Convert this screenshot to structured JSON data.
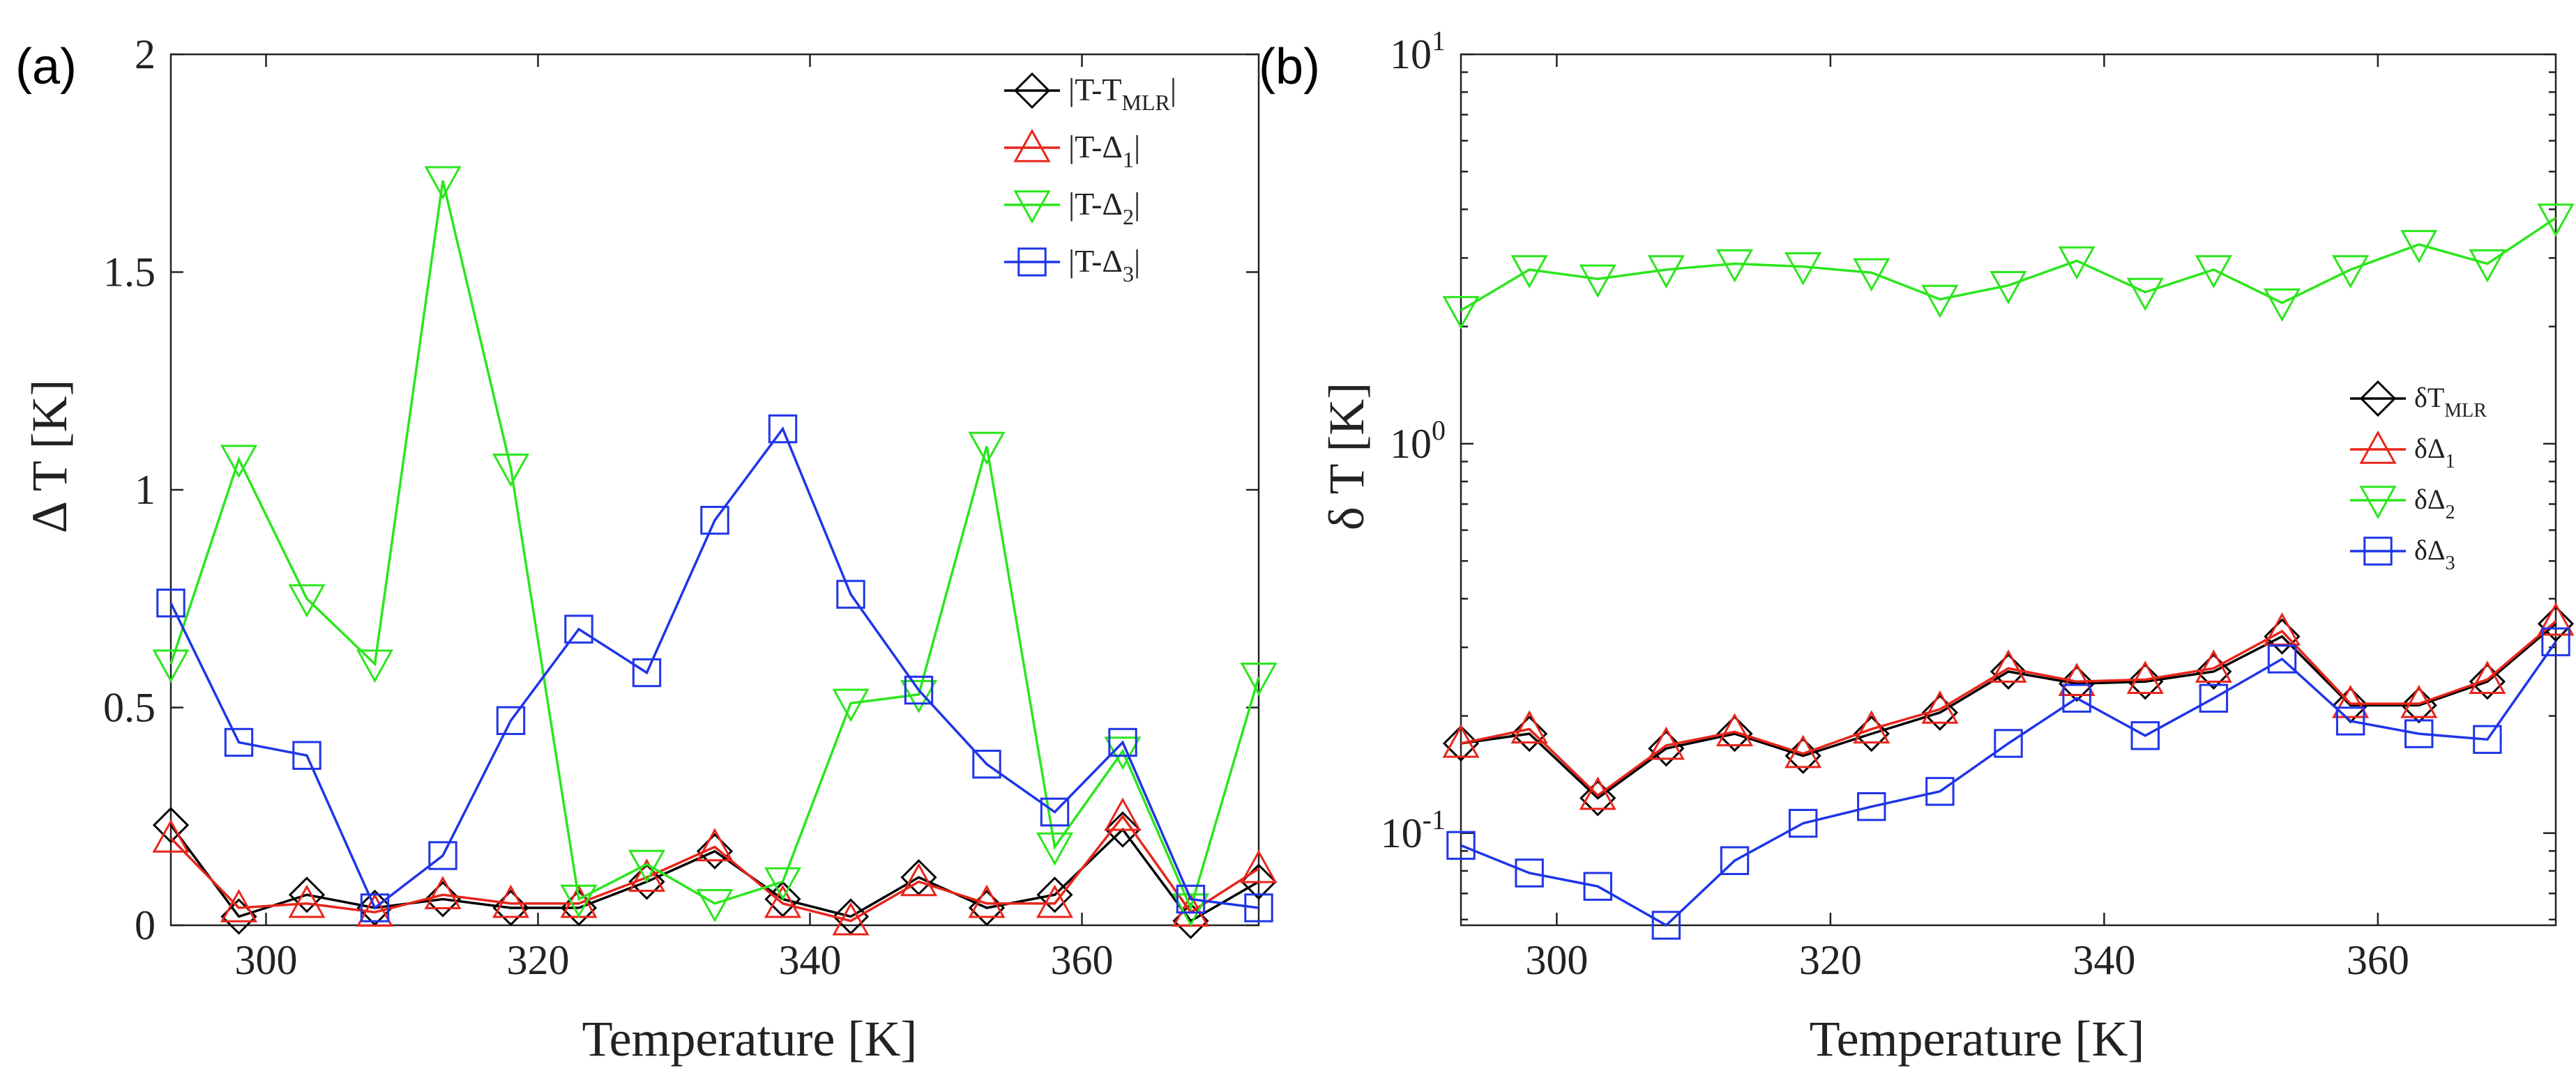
{
  "chart_data": [
    {
      "panel": "(a)",
      "type": "line",
      "xlabel": "Temperature [K]",
      "ylabel": "Δ T [K]",
      "yscale": "linear",
      "xlim": [
        293,
        373
      ],
      "ylim": [
        0,
        2
      ],
      "xticks": [
        300,
        320,
        340,
        360
      ],
      "xtick_labels": [
        "300",
        "320",
        "340",
        "360"
      ],
      "yticks": [
        0,
        0.5,
        1,
        1.5,
        2
      ],
      "ytick_labels": [
        "0",
        "0.5",
        "1",
        "1.5",
        "2"
      ],
      "legend_position": "top-right",
      "x": [
        293,
        298,
        303,
        308,
        313,
        318,
        323,
        328,
        333,
        338,
        343,
        348,
        353,
        358,
        363,
        368,
        373
      ],
      "series": [
        {
          "name": "|T-T_MLR|",
          "label_main": "|T-T",
          "label_sub": "MLR",
          "label_end": "|",
          "color": "#000000",
          "marker": "diamond",
          "values": [
            0.23,
            0.02,
            0.07,
            0.04,
            0.06,
            0.04,
            0.04,
            0.1,
            0.17,
            0.06,
            0.02,
            0.11,
            0.04,
            0.07,
            0.22,
            0.01,
            0.1
          ]
        },
        {
          "name": "|T-Δ_1|",
          "label_main": "|T-Δ",
          "label_sub": "1",
          "label_end": "|",
          "color": "#e8251b",
          "marker": "triangle-up",
          "values": [
            0.2,
            0.04,
            0.05,
            0.03,
            0.07,
            0.05,
            0.05,
            0.11,
            0.18,
            0.05,
            0.01,
            0.1,
            0.05,
            0.05,
            0.25,
            0.03,
            0.13
          ]
        },
        {
          "name": "|T-Δ_2|",
          "label_main": "|T-Δ",
          "label_sub": "2",
          "label_end": "|",
          "color": "#2be61c",
          "marker": "triangle-down",
          "values": [
            0.6,
            1.07,
            0.75,
            0.6,
            1.71,
            1.05,
            0.06,
            0.14,
            0.05,
            0.1,
            0.51,
            0.53,
            1.1,
            0.18,
            0.4,
            0.04,
            0.57
          ]
        },
        {
          "name": "|T-Δ_3|",
          "label_main": "|T-Δ",
          "label_sub": "3",
          "label_end": "|",
          "color": "#1f35e8",
          "marker": "square",
          "values": [
            0.74,
            0.42,
            0.39,
            0.04,
            0.16,
            0.47,
            0.68,
            0.58,
            0.93,
            1.14,
            0.76,
            0.54,
            0.37,
            0.26,
            0.42,
            0.06,
            0.04
          ]
        }
      ]
    },
    {
      "panel": "(b)",
      "type": "line",
      "xlabel": "Temperature [K]",
      "ylabel": "δ T [K]",
      "yscale": "log",
      "xlim": [
        293,
        373
      ],
      "ylim": [
        0.058,
        10
      ],
      "xticks": [
        300,
        320,
        340,
        360
      ],
      "xtick_labels": [
        "300",
        "320",
        "340",
        "360"
      ],
      "yticks": [
        0.1,
        1,
        10
      ],
      "ytick_base": "10",
      "ytick_exps": [
        "-1",
        "0",
        "1"
      ],
      "legend_position": "right",
      "x": [
        293,
        298,
        303,
        308,
        313,
        318,
        323,
        328,
        333,
        338,
        343,
        348,
        353,
        358,
        363,
        368,
        373
      ],
      "series": [
        {
          "name": "δT_MLR",
          "label_main": "δT",
          "label_sub": "MLR",
          "label_end": "",
          "color": "#000000",
          "marker": "diamond",
          "values": [
            0.17,
            0.18,
            0.123,
            0.165,
            0.18,
            0.158,
            0.18,
            0.204,
            0.26,
            0.242,
            0.245,
            0.26,
            0.32,
            0.213,
            0.213,
            0.245,
            0.345
          ]
        },
        {
          "name": "δΔ_1",
          "label_main": "δΔ",
          "label_sub": "1",
          "label_end": "",
          "color": "#e8251b",
          "marker": "triangle-up",
          "values": [
            0.17,
            0.185,
            0.125,
            0.168,
            0.182,
            0.16,
            0.185,
            0.208,
            0.265,
            0.245,
            0.248,
            0.265,
            0.33,
            0.215,
            0.215,
            0.248,
            0.35
          ]
        },
        {
          "name": "δΔ_2",
          "label_main": "δΔ",
          "label_sub": "2",
          "label_end": "",
          "color": "#2be61c",
          "marker": "triangle-down",
          "values": [
            2.2,
            2.8,
            2.65,
            2.8,
            2.9,
            2.85,
            2.75,
            2.35,
            2.55,
            2.95,
            2.45,
            2.8,
            2.3,
            2.8,
            3.25,
            2.9,
            3.8
          ]
        },
        {
          "name": "δΔ_3",
          "label_main": "δΔ",
          "label_sub": "3",
          "label_end": "",
          "color": "#1f35e8",
          "marker": "square",
          "values": [
            0.093,
            0.079,
            0.073,
            0.058,
            0.085,
            0.106,
            0.117,
            0.128,
            0.17,
            0.222,
            0.178,
            0.222,
            0.28,
            0.194,
            0.18,
            0.174,
            0.31
          ]
        }
      ]
    }
  ]
}
